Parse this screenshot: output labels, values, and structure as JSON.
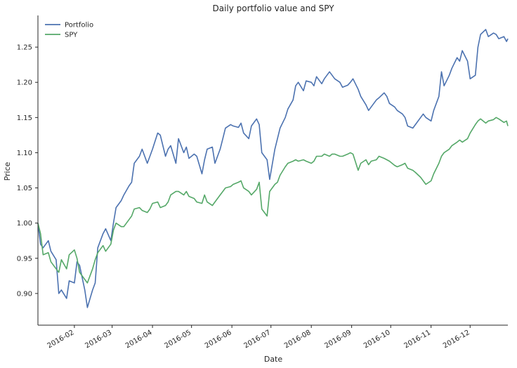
{
  "chart_data": {
    "type": "line",
    "title": "Daily portfolio value and SPY",
    "xlabel": "Date",
    "ylabel": "Price",
    "xlim": [
      "2016-01-04",
      "2016-12-30"
    ],
    "ylim": [
      0.855,
      1.295
    ],
    "yticks": [
      0.9,
      0.95,
      1.0,
      1.05,
      1.1,
      1.15,
      1.2,
      1.25
    ],
    "ytick_labels": [
      "0.90",
      "0.95",
      "1.00",
      "1.05",
      "1.10",
      "1.15",
      "1.20",
      "1.25"
    ],
    "xticks": [
      "2016-02-01",
      "2016-03-01",
      "2016-04-01",
      "2016-05-01",
      "2016-06-01",
      "2016-07-01",
      "2016-08-01",
      "2016-09-01",
      "2016-10-01",
      "2016-11-01",
      "2016-12-01"
    ],
    "xtick_labels": [
      "2016-02",
      "2016-03",
      "2016-04",
      "2016-05",
      "2016-06",
      "2016-07",
      "2016-08",
      "2016-09",
      "2016-10",
      "2016-11",
      "2016-12"
    ],
    "grid": false,
    "legend": "top-left",
    "series": [
      {
        "name": "Portfolio",
        "color": "#4c72b0",
        "x": [
          "2016-01-04",
          "2016-01-06",
          "2016-01-08",
          "2016-01-12",
          "2016-01-14",
          "2016-01-18",
          "2016-01-20",
          "2016-01-22",
          "2016-01-26",
          "2016-01-28",
          "2016-02-01",
          "2016-02-03",
          "2016-02-05",
          "2016-02-09",
          "2016-02-11",
          "2016-02-15",
          "2016-02-17",
          "2016-02-19",
          "2016-02-23",
          "2016-02-25",
          "2016-02-29",
          "2016-03-02",
          "2016-03-04",
          "2016-03-08",
          "2016-03-10",
          "2016-03-14",
          "2016-03-16",
          "2016-03-18",
          "2016-03-22",
          "2016-03-24",
          "2016-03-28",
          "2016-03-30",
          "2016-04-01",
          "2016-04-05",
          "2016-04-07",
          "2016-04-11",
          "2016-04-13",
          "2016-04-15",
          "2016-04-19",
          "2016-04-21",
          "2016-04-25",
          "2016-04-27",
          "2016-04-29",
          "2016-05-03",
          "2016-05-05",
          "2016-05-09",
          "2016-05-11",
          "2016-05-13",
          "2016-05-17",
          "2016-05-19",
          "2016-05-23",
          "2016-05-25",
          "2016-05-27",
          "2016-05-31",
          "2016-06-02",
          "2016-06-06",
          "2016-06-08",
          "2016-06-10",
          "2016-06-14",
          "2016-06-16",
          "2016-06-20",
          "2016-06-22",
          "2016-06-24",
          "2016-06-28",
          "2016-06-30",
          "2016-07-04",
          "2016-07-06",
          "2016-07-08",
          "2016-07-12",
          "2016-07-14",
          "2016-07-18",
          "2016-07-20",
          "2016-07-22",
          "2016-07-26",
          "2016-07-28",
          "2016-08-01",
          "2016-08-03",
          "2016-08-05",
          "2016-08-09",
          "2016-08-11",
          "2016-08-15",
          "2016-08-17",
          "2016-08-19",
          "2016-08-23",
          "2016-08-25",
          "2016-08-29",
          "2016-08-31",
          "2016-09-02",
          "2016-09-06",
          "2016-09-08",
          "2016-09-12",
          "2016-09-14",
          "2016-09-16",
          "2016-09-20",
          "2016-09-22",
          "2016-09-26",
          "2016-09-28",
          "2016-09-30",
          "2016-10-04",
          "2016-10-06",
          "2016-10-10",
          "2016-10-12",
          "2016-10-14",
          "2016-10-18",
          "2016-10-20",
          "2016-10-24",
          "2016-10-26",
          "2016-10-28",
          "2016-11-01",
          "2016-11-03",
          "2016-11-07",
          "2016-11-09",
          "2016-11-11",
          "2016-11-15",
          "2016-11-17",
          "2016-11-21",
          "2016-11-23",
          "2016-11-25",
          "2016-11-29",
          "2016-12-01",
          "2016-12-05",
          "2016-12-07",
          "2016-12-09",
          "2016-12-13",
          "2016-12-15",
          "2016-12-19",
          "2016-12-21",
          "2016-12-23",
          "2016-12-27",
          "2016-12-29",
          "2016-12-30"
        ],
        "values": [
          1.0,
          0.97,
          0.965,
          0.975,
          0.96,
          0.948,
          0.9,
          0.905,
          0.893,
          0.918,
          0.915,
          0.945,
          0.94,
          0.905,
          0.88,
          0.905,
          0.915,
          0.965,
          0.985,
          0.992,
          0.975,
          1.0,
          1.022,
          1.032,
          1.04,
          1.053,
          1.058,
          1.085,
          1.095,
          1.105,
          1.085,
          1.095,
          1.105,
          1.128,
          1.125,
          1.095,
          1.105,
          1.11,
          1.085,
          1.12,
          1.1,
          1.108,
          1.092,
          1.098,
          1.095,
          1.07,
          1.09,
          1.105,
          1.108,
          1.085,
          1.105,
          1.12,
          1.135,
          1.14,
          1.138,
          1.136,
          1.142,
          1.128,
          1.12,
          1.138,
          1.148,
          1.14,
          1.1,
          1.09,
          1.062,
          1.105,
          1.12,
          1.135,
          1.15,
          1.162,
          1.175,
          1.195,
          1.2,
          1.188,
          1.202,
          1.2,
          1.195,
          1.208,
          1.198,
          1.205,
          1.215,
          1.21,
          1.205,
          1.2,
          1.193,
          1.196,
          1.2,
          1.205,
          1.19,
          1.18,
          1.168,
          1.16,
          1.165,
          1.175,
          1.178,
          1.185,
          1.18,
          1.17,
          1.165,
          1.16,
          1.155,
          1.15,
          1.138,
          1.135,
          1.14,
          1.15,
          1.155,
          1.15,
          1.145,
          1.16,
          1.18,
          1.215,
          1.195,
          1.21,
          1.22,
          1.235,
          1.23,
          1.245,
          1.23,
          1.205,
          1.21,
          1.25,
          1.268,
          1.275,
          1.265,
          1.27,
          1.268,
          1.262,
          1.265,
          1.258,
          1.262
        ]
      },
      {
        "name": "SPY",
        "color": "#55a868",
        "x": [
          "2016-01-04",
          "2016-01-06",
          "2016-01-08",
          "2016-01-12",
          "2016-01-14",
          "2016-01-18",
          "2016-01-20",
          "2016-01-22",
          "2016-01-26",
          "2016-01-28",
          "2016-02-01",
          "2016-02-03",
          "2016-02-05",
          "2016-02-09",
          "2016-02-11",
          "2016-02-15",
          "2016-02-17",
          "2016-02-19",
          "2016-02-23",
          "2016-02-25",
          "2016-02-29",
          "2016-03-02",
          "2016-03-04",
          "2016-03-08",
          "2016-03-10",
          "2016-03-14",
          "2016-03-16",
          "2016-03-18",
          "2016-03-22",
          "2016-03-24",
          "2016-03-28",
          "2016-03-30",
          "2016-04-01",
          "2016-04-05",
          "2016-04-07",
          "2016-04-11",
          "2016-04-13",
          "2016-04-15",
          "2016-04-19",
          "2016-04-21",
          "2016-04-25",
          "2016-04-27",
          "2016-04-29",
          "2016-05-03",
          "2016-05-05",
          "2016-05-09",
          "2016-05-11",
          "2016-05-13",
          "2016-05-17",
          "2016-05-19",
          "2016-05-23",
          "2016-05-25",
          "2016-05-27",
          "2016-05-31",
          "2016-06-02",
          "2016-06-06",
          "2016-06-08",
          "2016-06-10",
          "2016-06-14",
          "2016-06-16",
          "2016-06-20",
          "2016-06-22",
          "2016-06-24",
          "2016-06-28",
          "2016-06-30",
          "2016-07-04",
          "2016-07-06",
          "2016-07-08",
          "2016-07-12",
          "2016-07-14",
          "2016-07-18",
          "2016-07-20",
          "2016-07-22",
          "2016-07-26",
          "2016-07-28",
          "2016-08-01",
          "2016-08-03",
          "2016-08-05",
          "2016-08-09",
          "2016-08-11",
          "2016-08-15",
          "2016-08-17",
          "2016-08-19",
          "2016-08-23",
          "2016-08-25",
          "2016-08-29",
          "2016-08-31",
          "2016-09-02",
          "2016-09-06",
          "2016-09-08",
          "2016-09-12",
          "2016-09-14",
          "2016-09-16",
          "2016-09-20",
          "2016-09-22",
          "2016-09-26",
          "2016-09-28",
          "2016-09-30",
          "2016-10-04",
          "2016-10-06",
          "2016-10-10",
          "2016-10-12",
          "2016-10-14",
          "2016-10-18",
          "2016-10-20",
          "2016-10-24",
          "2016-10-26",
          "2016-10-28",
          "2016-11-01",
          "2016-11-03",
          "2016-11-07",
          "2016-11-09",
          "2016-11-11",
          "2016-11-15",
          "2016-11-17",
          "2016-11-21",
          "2016-11-23",
          "2016-11-25",
          "2016-11-29",
          "2016-12-01",
          "2016-12-05",
          "2016-12-07",
          "2016-12-09",
          "2016-12-13",
          "2016-12-15",
          "2016-12-19",
          "2016-12-21",
          "2016-12-23",
          "2016-12-27",
          "2016-12-29",
          "2016-12-30"
        ],
        "values": [
          1.0,
          0.985,
          0.955,
          0.958,
          0.945,
          0.935,
          0.93,
          0.948,
          0.935,
          0.955,
          0.962,
          0.95,
          0.93,
          0.92,
          0.915,
          0.935,
          0.948,
          0.958,
          0.968,
          0.96,
          0.97,
          0.99,
          1.0,
          0.995,
          0.995,
          1.005,
          1.01,
          1.02,
          1.022,
          1.018,
          1.015,
          1.02,
          1.028,
          1.03,
          1.022,
          1.025,
          1.03,
          1.04,
          1.045,
          1.045,
          1.04,
          1.045,
          1.038,
          1.035,
          1.03,
          1.028,
          1.04,
          1.03,
          1.025,
          1.03,
          1.04,
          1.045,
          1.05,
          1.052,
          1.055,
          1.058,
          1.06,
          1.05,
          1.045,
          1.04,
          1.048,
          1.058,
          1.02,
          1.01,
          1.045,
          1.055,
          1.058,
          1.068,
          1.08,
          1.085,
          1.088,
          1.09,
          1.088,
          1.09,
          1.088,
          1.085,
          1.088,
          1.095,
          1.095,
          1.098,
          1.095,
          1.098,
          1.098,
          1.095,
          1.095,
          1.098,
          1.1,
          1.098,
          1.075,
          1.085,
          1.09,
          1.083,
          1.088,
          1.09,
          1.095,
          1.092,
          1.09,
          1.088,
          1.082,
          1.08,
          1.083,
          1.085,
          1.078,
          1.075,
          1.072,
          1.065,
          1.06,
          1.055,
          1.06,
          1.07,
          1.085,
          1.095,
          1.1,
          1.105,
          1.11,
          1.115,
          1.118,
          1.115,
          1.12,
          1.128,
          1.14,
          1.145,
          1.148,
          1.142,
          1.145,
          1.147,
          1.15,
          1.148,
          1.143,
          1.145,
          1.138
        ]
      }
    ]
  }
}
